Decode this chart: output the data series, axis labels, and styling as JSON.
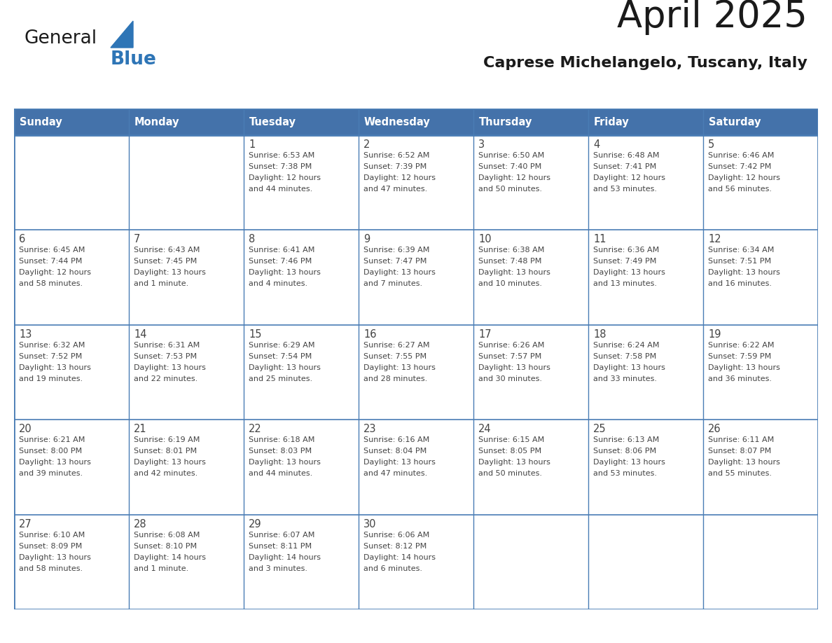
{
  "title": "April 2025",
  "subtitle": "Caprese Michelangelo, Tuscany, Italy",
  "days_of_week": [
    "Sunday",
    "Monday",
    "Tuesday",
    "Wednesday",
    "Thursday",
    "Friday",
    "Saturday"
  ],
  "header_bg": "#4472AA",
  "header_text": "#FFFFFF",
  "cell_bg": "#FFFFFF",
  "cell_text": "#444444",
  "border_color": "#4A7DB5",
  "title_color": "#1A1A1A",
  "subtitle_color": "#1A1A1A",
  "logo_general_color": "#1A1A1A",
  "logo_blue_color": "#2E75B6",
  "calendar_data": [
    [
      {
        "day": "",
        "sunrise": "",
        "sunset": "",
        "daylight": ""
      },
      {
        "day": "",
        "sunrise": "",
        "sunset": "",
        "daylight": ""
      },
      {
        "day": "1",
        "sunrise": "Sunrise: 6:53 AM",
        "sunset": "Sunset: 7:38 PM",
        "daylight": "Daylight: 12 hours\nand 44 minutes."
      },
      {
        "day": "2",
        "sunrise": "Sunrise: 6:52 AM",
        "sunset": "Sunset: 7:39 PM",
        "daylight": "Daylight: 12 hours\nand 47 minutes."
      },
      {
        "day": "3",
        "sunrise": "Sunrise: 6:50 AM",
        "sunset": "Sunset: 7:40 PM",
        "daylight": "Daylight: 12 hours\nand 50 minutes."
      },
      {
        "day": "4",
        "sunrise": "Sunrise: 6:48 AM",
        "sunset": "Sunset: 7:41 PM",
        "daylight": "Daylight: 12 hours\nand 53 minutes."
      },
      {
        "day": "5",
        "sunrise": "Sunrise: 6:46 AM",
        "sunset": "Sunset: 7:42 PM",
        "daylight": "Daylight: 12 hours\nand 56 minutes."
      }
    ],
    [
      {
        "day": "6",
        "sunrise": "Sunrise: 6:45 AM",
        "sunset": "Sunset: 7:44 PM",
        "daylight": "Daylight: 12 hours\nand 58 minutes."
      },
      {
        "day": "7",
        "sunrise": "Sunrise: 6:43 AM",
        "sunset": "Sunset: 7:45 PM",
        "daylight": "Daylight: 13 hours\nand 1 minute."
      },
      {
        "day": "8",
        "sunrise": "Sunrise: 6:41 AM",
        "sunset": "Sunset: 7:46 PM",
        "daylight": "Daylight: 13 hours\nand 4 minutes."
      },
      {
        "day": "9",
        "sunrise": "Sunrise: 6:39 AM",
        "sunset": "Sunset: 7:47 PM",
        "daylight": "Daylight: 13 hours\nand 7 minutes."
      },
      {
        "day": "10",
        "sunrise": "Sunrise: 6:38 AM",
        "sunset": "Sunset: 7:48 PM",
        "daylight": "Daylight: 13 hours\nand 10 minutes."
      },
      {
        "day": "11",
        "sunrise": "Sunrise: 6:36 AM",
        "sunset": "Sunset: 7:49 PM",
        "daylight": "Daylight: 13 hours\nand 13 minutes."
      },
      {
        "day": "12",
        "sunrise": "Sunrise: 6:34 AM",
        "sunset": "Sunset: 7:51 PM",
        "daylight": "Daylight: 13 hours\nand 16 minutes."
      }
    ],
    [
      {
        "day": "13",
        "sunrise": "Sunrise: 6:32 AM",
        "sunset": "Sunset: 7:52 PM",
        "daylight": "Daylight: 13 hours\nand 19 minutes."
      },
      {
        "day": "14",
        "sunrise": "Sunrise: 6:31 AM",
        "sunset": "Sunset: 7:53 PM",
        "daylight": "Daylight: 13 hours\nand 22 minutes."
      },
      {
        "day": "15",
        "sunrise": "Sunrise: 6:29 AM",
        "sunset": "Sunset: 7:54 PM",
        "daylight": "Daylight: 13 hours\nand 25 minutes."
      },
      {
        "day": "16",
        "sunrise": "Sunrise: 6:27 AM",
        "sunset": "Sunset: 7:55 PM",
        "daylight": "Daylight: 13 hours\nand 28 minutes."
      },
      {
        "day": "17",
        "sunrise": "Sunrise: 6:26 AM",
        "sunset": "Sunset: 7:57 PM",
        "daylight": "Daylight: 13 hours\nand 30 minutes."
      },
      {
        "day": "18",
        "sunrise": "Sunrise: 6:24 AM",
        "sunset": "Sunset: 7:58 PM",
        "daylight": "Daylight: 13 hours\nand 33 minutes."
      },
      {
        "day": "19",
        "sunrise": "Sunrise: 6:22 AM",
        "sunset": "Sunset: 7:59 PM",
        "daylight": "Daylight: 13 hours\nand 36 minutes."
      }
    ],
    [
      {
        "day": "20",
        "sunrise": "Sunrise: 6:21 AM",
        "sunset": "Sunset: 8:00 PM",
        "daylight": "Daylight: 13 hours\nand 39 minutes."
      },
      {
        "day": "21",
        "sunrise": "Sunrise: 6:19 AM",
        "sunset": "Sunset: 8:01 PM",
        "daylight": "Daylight: 13 hours\nand 42 minutes."
      },
      {
        "day": "22",
        "sunrise": "Sunrise: 6:18 AM",
        "sunset": "Sunset: 8:03 PM",
        "daylight": "Daylight: 13 hours\nand 44 minutes."
      },
      {
        "day": "23",
        "sunrise": "Sunrise: 6:16 AM",
        "sunset": "Sunset: 8:04 PM",
        "daylight": "Daylight: 13 hours\nand 47 minutes."
      },
      {
        "day": "24",
        "sunrise": "Sunrise: 6:15 AM",
        "sunset": "Sunset: 8:05 PM",
        "daylight": "Daylight: 13 hours\nand 50 minutes."
      },
      {
        "day": "25",
        "sunrise": "Sunrise: 6:13 AM",
        "sunset": "Sunset: 8:06 PM",
        "daylight": "Daylight: 13 hours\nand 53 minutes."
      },
      {
        "day": "26",
        "sunrise": "Sunrise: 6:11 AM",
        "sunset": "Sunset: 8:07 PM",
        "daylight": "Daylight: 13 hours\nand 55 minutes."
      }
    ],
    [
      {
        "day": "27",
        "sunrise": "Sunrise: 6:10 AM",
        "sunset": "Sunset: 8:09 PM",
        "daylight": "Daylight: 13 hours\nand 58 minutes."
      },
      {
        "day": "28",
        "sunrise": "Sunrise: 6:08 AM",
        "sunset": "Sunset: 8:10 PM",
        "daylight": "Daylight: 14 hours\nand 1 minute."
      },
      {
        "day": "29",
        "sunrise": "Sunrise: 6:07 AM",
        "sunset": "Sunset: 8:11 PM",
        "daylight": "Daylight: 14 hours\nand 3 minutes."
      },
      {
        "day": "30",
        "sunrise": "Sunrise: 6:06 AM",
        "sunset": "Sunset: 8:12 PM",
        "daylight": "Daylight: 14 hours\nand 6 minutes."
      },
      {
        "day": "",
        "sunrise": "",
        "sunset": "",
        "daylight": ""
      },
      {
        "day": "",
        "sunrise": "",
        "sunset": "",
        "daylight": ""
      },
      {
        "day": "",
        "sunrise": "",
        "sunset": "",
        "daylight": ""
      }
    ]
  ]
}
